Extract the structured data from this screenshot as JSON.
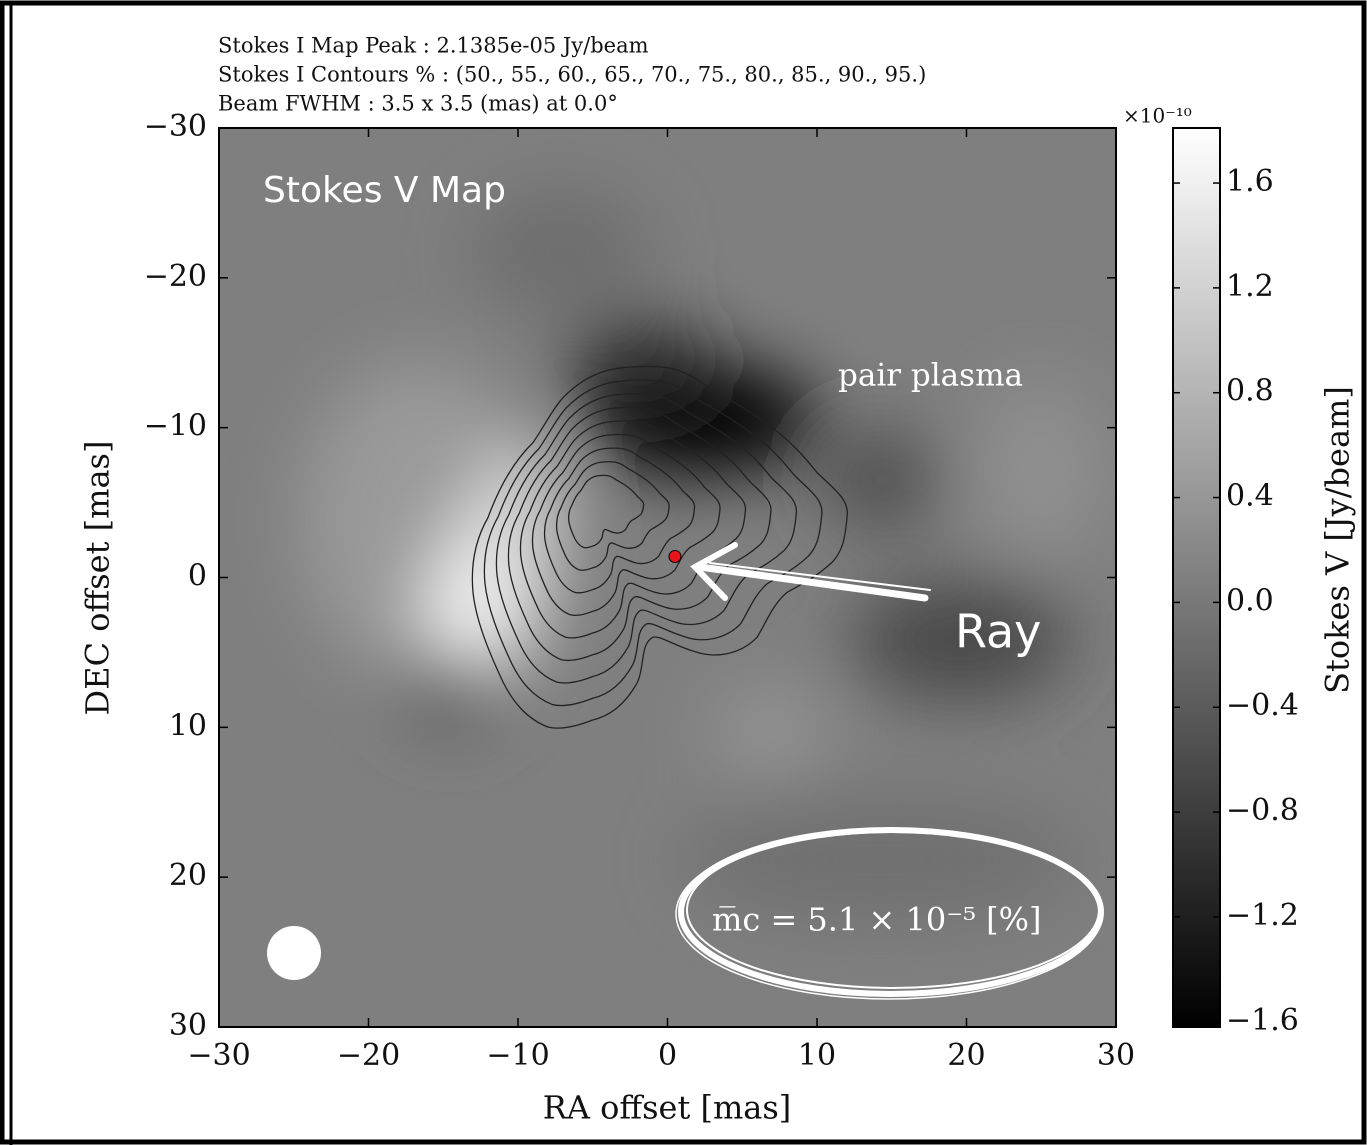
{
  "chart_data": {
    "type": "image",
    "header": [
      "Stokes I Map Peak :  2.1385e-05 Jy/beam",
      "Stokes I Contours % :  (50., 55., 60., 65., 70., 75., 80., 85., 90., 95.)",
      "Beam FWHM :  3.5 x 3.5 (mas) at 0.0°"
    ],
    "x_label": "RA offset [mas]",
    "y_label": "DEC offset [mas]",
    "xlim": [
      -30,
      30
    ],
    "ylim": [
      -30,
      30
    ],
    "y_inverted": true,
    "xticks": [
      {
        "value": -30,
        "label": "−30"
      },
      {
        "value": -20,
        "label": "−20"
      },
      {
        "value": -10,
        "label": "−10"
      },
      0,
      10,
      20,
      30
    ],
    "yticks": [
      {
        "value": -30,
        "label": "−30"
      },
      {
        "value": -20,
        "label": "−20"
      },
      {
        "value": -10,
        "label": "−10"
      },
      0,
      10,
      20,
      30
    ],
    "cmap": "gray",
    "colorbar": {
      "label": "Stokes V [Jy/beam]",
      "multiplier": "×10⁻¹⁰",
      "lim": [
        -1.62,
        1.81
      ],
      "ticks": [
        1.6,
        1.2,
        0.8,
        0.4,
        {
          "value": 0,
          "label": "0.0"
        },
        {
          "value": -0.4,
          "label": "−0.4"
        },
        {
          "value": -0.8,
          "label": "−0.8"
        },
        {
          "value": -1.2,
          "label": "−1.2"
        },
        {
          "value": -1.6,
          "label": "−1.6"
        }
      ]
    },
    "marker": {
      "x": 0.5,
      "y": -1.4,
      "color": "#e8141b"
    },
    "annotations": {
      "map_title": "Stokes V Map",
      "region": "pair plasma",
      "arrow_label": "Ray",
      "mean_fraction": "m̅c =  5.1 × 10⁻⁵ [%]"
    }
  }
}
